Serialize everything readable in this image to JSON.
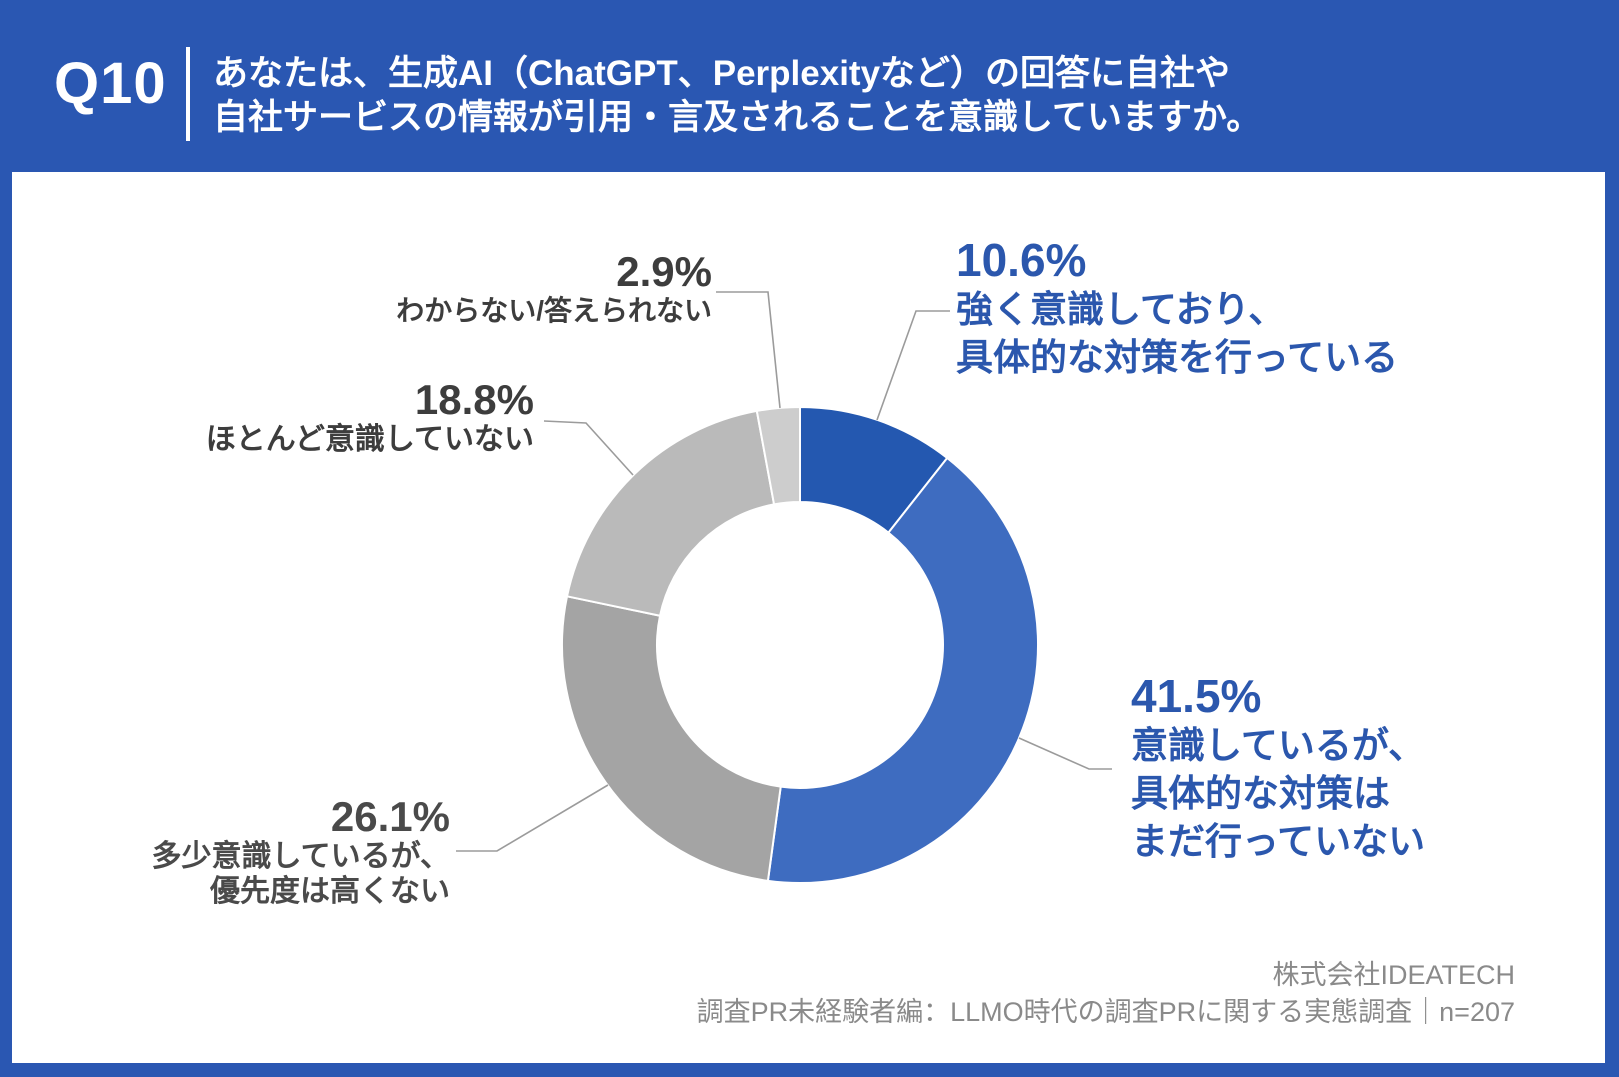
{
  "header": {
    "question_number": "Q10",
    "title_lines": [
      "あなたは、生成AI（ChatGPT、Perplexityなど）の回答に自社や",
      "自社サービスの情報が引用・言及されることを意識していますか。"
    ]
  },
  "chart_data": {
    "type": "pie",
    "subtype": "donut",
    "title": "",
    "unit": "%",
    "direction": "clockwise",
    "start_angle_deg": 0,
    "inner_radius_ratio": 0.6,
    "legend": "none",
    "categories": [
      "強く意識しており、具体的な対策を行っている",
      "意識しているが、具体的な対策はまだ行っていない",
      "多少意識しているが、優先度は高くない",
      "ほとんど意識していない",
      "わからない/答えられない"
    ],
    "values": [
      10.6,
      41.5,
      26.1,
      18.8,
      2.9
    ],
    "colors": [
      "#2458b0",
      "#3e6cc0",
      "#a4a4a4",
      "#bababa",
      "#cdcdcd"
    ]
  },
  "callouts": {
    "strong": {
      "pct": "10.6%",
      "lines": [
        "強く意識しており、",
        "具体的な対策を行っている"
      ]
    },
    "aware": {
      "pct": "41.5%",
      "lines": [
        "意識しているが、",
        "具体的な対策は",
        "まだ行っていない"
      ]
    },
    "slight": {
      "pct": "26.1%",
      "lines": [
        "多少意識しているが、",
        "優先度は高くない"
      ]
    },
    "little": {
      "pct": "18.8%",
      "lines": [
        "ほとんど意識していない"
      ]
    },
    "unknown": {
      "pct": "2.9%",
      "lines": [
        "わからない/答えられない"
      ]
    }
  },
  "footer": {
    "company": "株式会社IDEATECH",
    "source": "調査PR未経験者編：LLMO時代の調査PRに関する実態調査｜n=207"
  },
  "colors": {
    "frame_blue": "#2a57b2",
    "accent_text_blue": "#2b57ad",
    "label_dark": "#3d3d3d",
    "footer_gray": "#8a8a8a",
    "leader_gray": "#9b9b9b"
  }
}
